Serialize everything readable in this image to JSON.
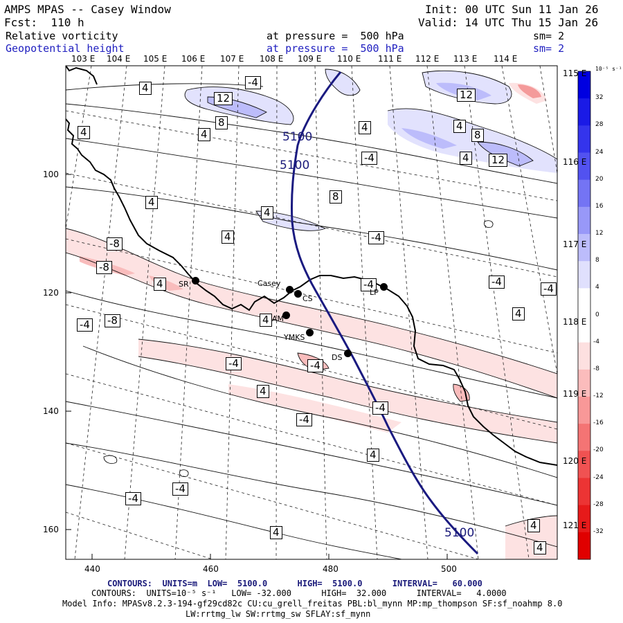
{
  "header": {
    "title": "AMPS MPAS -- Casey Window",
    "forecast": "Fcst:  110 h",
    "init": "Init: 00 UTC Sun 11 Jan 26",
    "valid": "Valid: 14 UTC Thu 15 Jan 26"
  },
  "fields": [
    {
      "name": "Relative vorticity",
      "pressure": "at pressure =  500 hPa",
      "sm": "sm= 2"
    },
    {
      "name": "Geopotential height",
      "pressure": "at pressure =  500 hPa",
      "sm": "sm= 2"
    }
  ],
  "lon_labels": [
    "103 E",
    "104 E",
    "105 E",
    "106 E",
    "107 E",
    "108 E",
    "109 E",
    "110 E",
    "111 E",
    "112 E",
    "113 E",
    "114 E"
  ],
  "right_lon_labels": [
    "115 E",
    "116 E",
    "117 E",
    "118 E",
    "119 E",
    "120 E",
    "121 E"
  ],
  "x_ticks": [
    "440",
    "460",
    "480",
    "500"
  ],
  "y_ticks": [
    "100",
    "120",
    "140",
    "160"
  ],
  "colorbar": {
    "unit": "10⁻⁵ s⁻¹",
    "levels": [
      "32",
      "28",
      "24",
      "20",
      "16",
      "12",
      "8",
      "4",
      "0",
      "-4",
      "-8",
      "-12",
      "-16",
      "-20",
      "-24",
      "-28",
      "-32"
    ],
    "colors": [
      "#0000e0",
      "#1a1ae6",
      "#3434ec",
      "#5252f0",
      "#7474f4",
      "#9898f8",
      "#bcbcfb",
      "#e0e0fd",
      "#ffffff",
      "#ffffff",
      "#fde0e0",
      "#fbbcbc",
      "#f89898",
      "#f47474",
      "#f05252",
      "#ec3434",
      "#e61a1a",
      "#e00000"
    ]
  },
  "stations": [
    {
      "name": "SR"
    },
    {
      "name": "Casey"
    },
    {
      "name": "CS"
    },
    {
      "name": "AM"
    },
    {
      "name": "YMKS"
    },
    {
      "name": "DS"
    },
    {
      "name": "LP"
    }
  ],
  "height_labels": [
    "5100",
    "5100",
    "5100"
  ],
  "contour_labels": [
    "4",
    "-4",
    "12",
    "8",
    "4",
    "4",
    "4",
    "4",
    "12",
    "8",
    "12",
    "-4",
    "4",
    "4",
    "8",
    "4",
    "4",
    "-4",
    "-8",
    "-8",
    "4",
    "-4",
    "-4",
    "-4",
    "4",
    "-4",
    "-8",
    "-4",
    "-4",
    "4",
    "-4",
    "-4",
    "4",
    "-4",
    "-4",
    "4",
    "4",
    "4",
    "4"
  ],
  "footer": {
    "line1": "CONTOURS:  UNITS=m  LOW=  5100.0      HIGH=  5100.0      INTERVAL=   60.000",
    "line2": "CONTOURS:  UNITS=10⁻⁵ s⁻¹   LOW= -32.000      HIGH=  32.000      INTERVAL=   4.0000",
    "line3": "Model Info: MPASv8.2.3-194-gf29cd82c CU:cu_grell_freitas PBL:bl_mynn MP:mp_thompson SF:sf_noahmp 8.0",
    "line4": "LW:rrtmg_lw SW:rrtmg_sw SFLAY:sf_mynn"
  }
}
